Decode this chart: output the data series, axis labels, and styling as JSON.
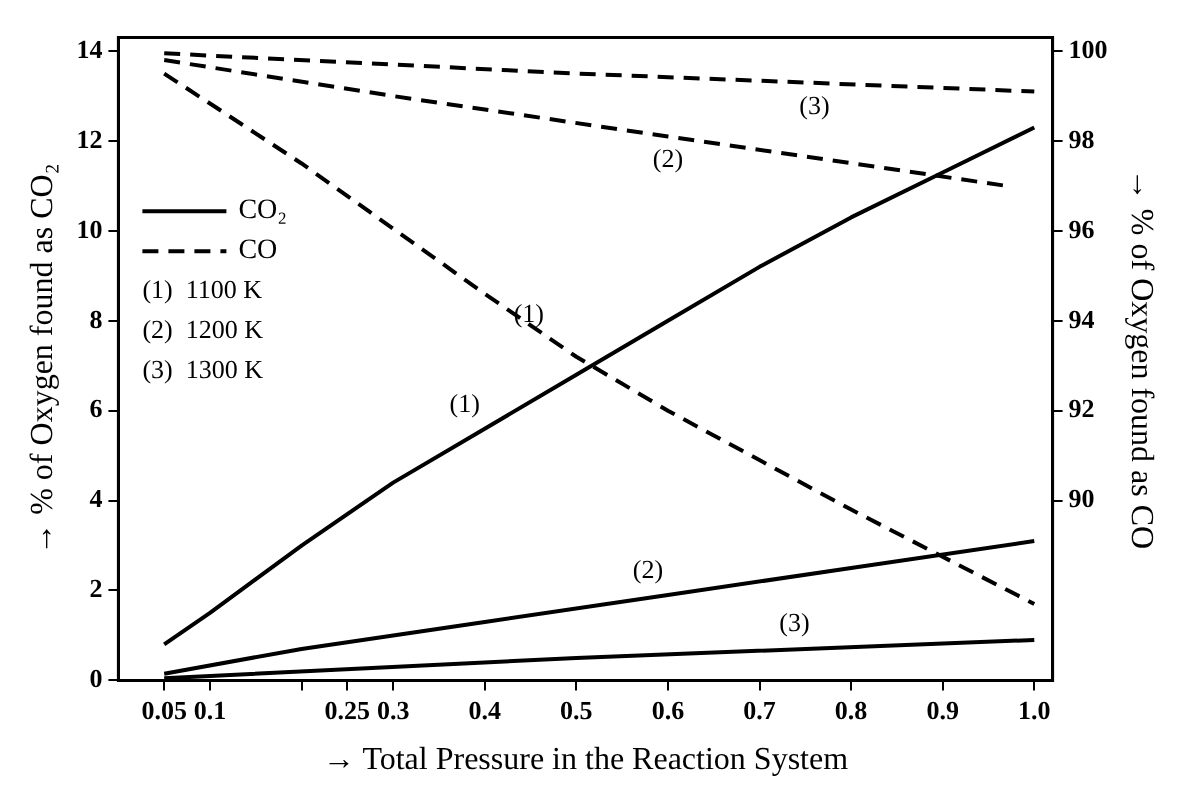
{
  "chart_data": {
    "type": "line",
    "xlabel": "→ Total Pressure in the Reaction System",
    "ylabel": "→ % of Oxygen found as CO₂",
    "y2label": "→ % of Oxygen found as CO",
    "series": [
      {
        "name": "CO₂",
        "color": "#000000",
        "line_style": "solid",
        "x": [
          0.05,
          0.1,
          0.2,
          0.3,
          0.4,
          0.5,
          0.6,
          0.7,
          0.8,
          0.9,
          1.0
        ],
        "values": [
          0.8,
          1.5,
          3.0,
          4.4,
          5.6,
          6.8,
          8.0,
          9.2,
          10.3,
          11.3,
          12.3
        ]
      },
      {
        "color": "#000000",
        "line_style": "solid",
        "x": [
          0.05,
          0.2,
          0.4,
          0.6,
          0.8,
          1.0
        ],
        "values": [
          0.15,
          0.7,
          1.3,
          1.9,
          2.5,
          3.1
        ]
      },
      {
        "color": "#000000",
        "line_style": "solid",
        "x": [
          0.05,
          0.5,
          1.0
        ],
        "values": [
          0.05,
          0.5,
          0.9
        ]
      },
      {
        "name": "CO",
        "color": "#000000",
        "line_style": "dashed",
        "axis": "y2",
        "x": [
          0.05,
          0.2,
          0.4,
          0.5,
          0.6,
          0.8,
          1.0
        ],
        "values": [
          99.5,
          97.5,
          94.6,
          93.2,
          92.0,
          89.8,
          87.7
        ]
      },
      {
        "color": "#000000",
        "line_style": "dashed",
        "axis": "y2",
        "x": [
          0.05,
          0.3,
          0.6,
          0.97
        ],
        "values": [
          99.8,
          99.0,
          98.1,
          97.0
        ]
      },
      {
        "color": "#000000",
        "line_style": "dashed",
        "axis": "y2",
        "x": [
          0.05,
          0.5,
          1.0
        ],
        "values": [
          99.95,
          99.5,
          99.1
        ]
      }
    ],
    "xlim": [
      0,
      1.02
    ],
    "xticks": [
      0.05,
      0.1,
      {
        "value": 0.2,
        "label": null
      },
      0.25,
      0.3,
      0.4,
      0.5,
      0.6,
      0.7,
      0.8,
      0.9,
      {
        "value": 1.0,
        "label": "1.0"
      }
    ],
    "ylim": [
      0,
      14.3
    ],
    "yticks": [
      0,
      2,
      4,
      6,
      8,
      10,
      12,
      14
    ],
    "y2lim": [
      86,
      100.3
    ],
    "y2ticks": [
      90,
      92,
      94,
      96,
      98,
      100
    ],
    "legend": "left",
    "grid": false,
    "annotations": [
      "(1)  1100 K",
      "(2)  1200 K",
      "(3)  1300 K",
      {
        "text": "(1)",
        "x": 0.47,
        "y": 7.6
      },
      {
        "text": "(1)",
        "x": 0.4,
        "y": 5.6
      },
      {
        "text": "(2)",
        "x": 0.6,
        "y": 12.1
      },
      {
        "text": "(3)",
        "x": 0.76,
        "y": 13.29
      },
      {
        "text": "(2)",
        "x": 0.6,
        "y": 1.9
      },
      {
        "text": "(3)",
        "x": 0.76,
        "y": 0.71
      }
    ]
  }
}
